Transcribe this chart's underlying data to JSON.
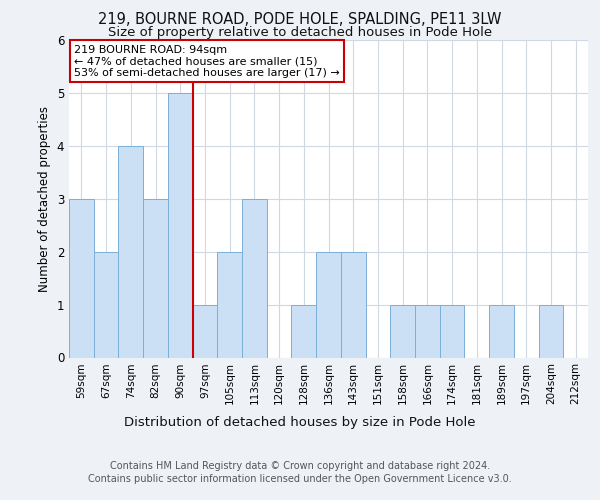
{
  "title_line1": "219, BOURNE ROAD, PODE HOLE, SPALDING, PE11 3LW",
  "title_line2": "Size of property relative to detached houses in Pode Hole",
  "xlabel": "Distribution of detached houses by size in Pode Hole",
  "ylabel": "Number of detached properties",
  "footer_line1": "Contains HM Land Registry data © Crown copyright and database right 2024.",
  "footer_line2": "Contains public sector information licensed under the Open Government Licence v3.0.",
  "categories": [
    "59sqm",
    "67sqm",
    "74sqm",
    "82sqm",
    "90sqm",
    "97sqm",
    "105sqm",
    "113sqm",
    "120sqm",
    "128sqm",
    "136sqm",
    "143sqm",
    "151sqm",
    "158sqm",
    "166sqm",
    "174sqm",
    "181sqm",
    "189sqm",
    "197sqm",
    "204sqm",
    "212sqm"
  ],
  "values": [
    3,
    2,
    4,
    3,
    5,
    1,
    2,
    3,
    0,
    1,
    2,
    2,
    0,
    1,
    1,
    1,
    0,
    1,
    0,
    1,
    0
  ],
  "highlight_index": 4,
  "bar_color": "#cce0f5",
  "bar_edge_color": "#7ab0d8",
  "highlight_line_color": "#cc0000",
  "annotation_text": "219 BOURNE ROAD: 94sqm\n← 47% of detached houses are smaller (15)\n53% of semi-detached houses are larger (17) →",
  "annotation_box_edge_color": "#cc0000",
  "ylim": [
    0,
    6
  ],
  "yticks": [
    0,
    1,
    2,
    3,
    4,
    5,
    6
  ],
  "bg_color": "#eef2f7",
  "plot_bg_color": "#ffffff",
  "grid_color": "#d0d8e4",
  "title1_fontsize": 10.5,
  "title2_fontsize": 9.5,
  "ylabel_fontsize": 8.5,
  "xlabel_fontsize": 9.5,
  "tick_fontsize": 7.5,
  "footer_fontsize": 7.0
}
